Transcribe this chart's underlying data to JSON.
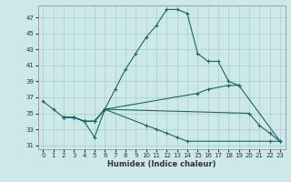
{
  "xlabel": "Humidex (Indice chaleur)",
  "bg_color": "#cce8e8",
  "grid_color": "#aacccc",
  "line_color": "#1a6666",
  "xlim": [
    -0.5,
    23.5
  ],
  "ylim": [
    30.5,
    48.5
  ],
  "yticks": [
    31,
    33,
    35,
    37,
    39,
    41,
    43,
    45,
    47
  ],
  "xticks": [
    0,
    1,
    2,
    3,
    4,
    5,
    6,
    7,
    8,
    9,
    10,
    11,
    12,
    13,
    14,
    15,
    16,
    17,
    18,
    19,
    20,
    21,
    22,
    23
  ],
  "s1_x": [
    0,
    1,
    2,
    3,
    4,
    5,
    6,
    7,
    8,
    9,
    10,
    11,
    12,
    13,
    14,
    15,
    16,
    17,
    18,
    19
  ],
  "s1_y": [
    36.5,
    35.5,
    34.5,
    34.5,
    34.0,
    32.0,
    35.5,
    38.0,
    40.5,
    42.5,
    44.5,
    46.0,
    48.0,
    48.0,
    47.5,
    42.5,
    41.5,
    41.5,
    39.0,
    38.5
  ],
  "s2_x": [
    2,
    3,
    4,
    5,
    6,
    20,
    21,
    22,
    23
  ],
  "s2_y": [
    34.5,
    34.5,
    34.0,
    34.0,
    35.5,
    35.0,
    33.5,
    32.5,
    31.5
  ],
  "s3_x": [
    2,
    3,
    4,
    5,
    6,
    15,
    16,
    18,
    19,
    23
  ],
  "s3_y": [
    34.5,
    34.5,
    34.0,
    34.0,
    35.5,
    37.5,
    38.0,
    38.5,
    38.5,
    31.5
  ],
  "s4_x": [
    2,
    3,
    4,
    5,
    6,
    10,
    11,
    12,
    13,
    14,
    22,
    23
  ],
  "s4_y": [
    34.5,
    34.5,
    34.0,
    34.0,
    35.5,
    33.5,
    33.0,
    32.5,
    32.0,
    31.5,
    31.5,
    31.5
  ]
}
